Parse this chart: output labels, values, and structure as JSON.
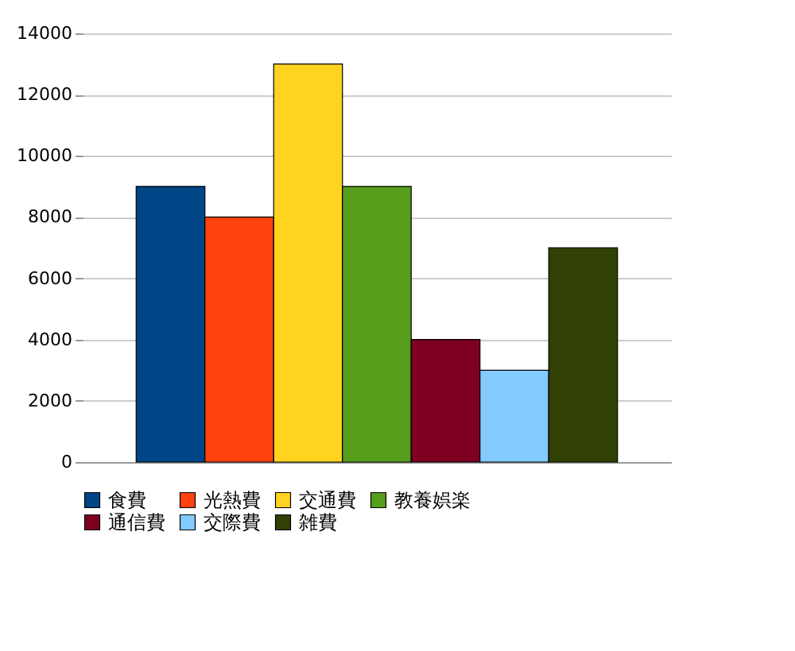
{
  "chart_data": {
    "type": "bar",
    "categories": [
      null
    ],
    "series": [
      {
        "name": "食費",
        "color": "#004586",
        "values": [
          9000
        ]
      },
      {
        "name": "光熱費",
        "color": "#ff420e",
        "values": [
          8000
        ]
      },
      {
        "name": "交通費",
        "color": "#ffd320",
        "values": [
          13000
        ]
      },
      {
        "name": "教養娯楽",
        "color": "#579d1c",
        "values": [
          9000
        ]
      },
      {
        "name": "通信費",
        "color": "#7e0021",
        "values": [
          4000
        ]
      },
      {
        "name": "交際費",
        "color": "#83caff",
        "values": [
          3000
        ]
      },
      {
        "name": "雑費",
        "color": "#314004",
        "values": [
          7000
        ]
      }
    ],
    "ylim": [
      0,
      14000
    ],
    "yticks": [
      0,
      2000,
      4000,
      6000,
      8000,
      10000,
      12000,
      14000
    ],
    "grid": "y",
    "legend": "bottom"
  }
}
